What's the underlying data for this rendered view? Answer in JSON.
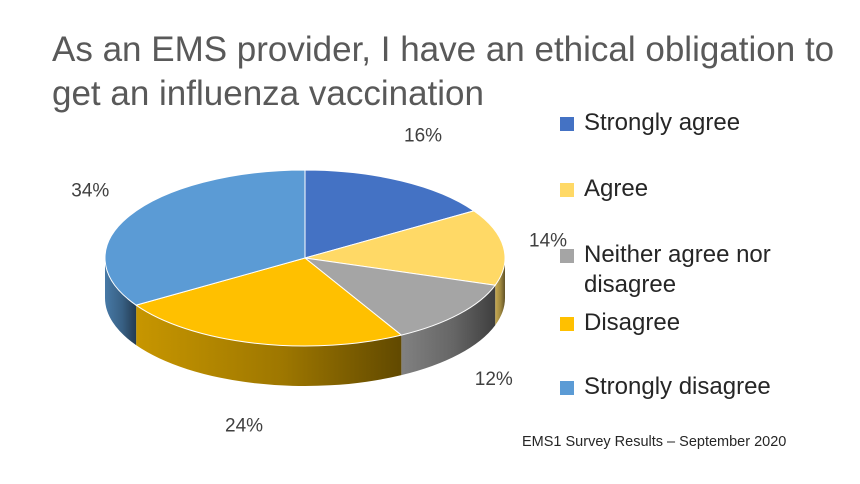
{
  "title": "As an EMS provider, I have an ethical obligation to get an influenza vaccination",
  "source_note": "EMS1 Survey Results – September 2020",
  "chart_data": {
    "type": "pie",
    "title": "As an EMS provider, I have an ethical obligation to get an influenza vaccination",
    "categories": [
      "Strongly agree",
      "Agree",
      "Neither agree nor disagree",
      "Disagree",
      "Strongly disagree"
    ],
    "values": [
      16,
      14,
      12,
      24,
      34
    ],
    "labels": [
      "16%",
      "14%",
      "12%",
      "24%",
      "34%"
    ],
    "colors": [
      "#4472C4",
      "#FFD966",
      "#A5A5A5",
      "#FFC000",
      "#5B9BD5"
    ],
    "legend_position": "right"
  }
}
